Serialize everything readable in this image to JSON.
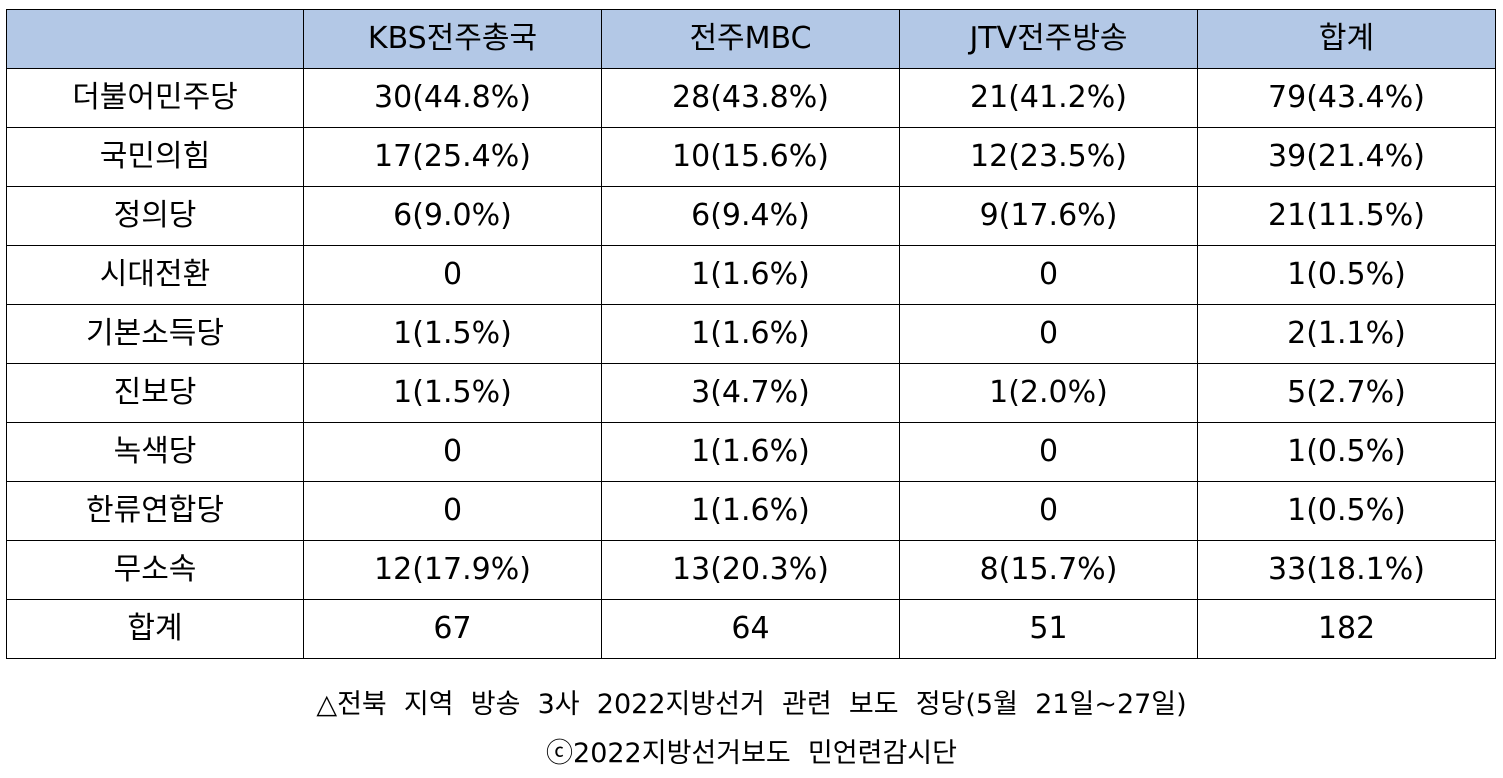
{
  "table": {
    "header": [
      "",
      "KBS전주총국",
      "전주MBC",
      "JTV전주방송",
      "합계"
    ],
    "header_color": "#b3c8e6",
    "rows": [
      [
        "더불어민주당",
        "30(44.8%)",
        "28(43.8%)",
        "21(41.2%)",
        "79(43.4%)"
      ],
      [
        "국민의힘",
        "17(25.4%)",
        "10(15.6%)",
        "12(23.5%)",
        "39(21.4%)"
      ],
      [
        "정의당",
        "6(9.0%)",
        "6(9.4%)",
        "9(17.6%)",
        "21(11.5%)"
      ],
      [
        "시대전환",
        "0",
        "1(1.6%)",
        "0",
        "1(0.5%)"
      ],
      [
        "기본소득당",
        "1(1.5%)",
        "1(1.6%)",
        "0",
        "2(1.1%)"
      ],
      [
        "진보당",
        "1(1.5%)",
        "3(4.7%)",
        "1(2.0%)",
        "5(2.7%)"
      ],
      [
        "녹색당",
        "0",
        "1(1.6%)",
        "0",
        "1(0.5%)"
      ],
      [
        "한류연합당",
        "0",
        "1(1.6%)",
        "0",
        "1(0.5%)"
      ],
      [
        "무소속",
        "12(17.9%)",
        "13(20.3%)",
        "8(15.7%)",
        "33(18.1%)"
      ],
      [
        "합계",
        "67",
        "64",
        "51",
        "182"
      ]
    ]
  },
  "caption": {
    "line1": "△전북  지역  방송  3사  2022지방선거  관련  보도  정당(5월  21일~27일)",
    "line2": "ⓒ2022지방선거보도  민언련감시단"
  }
}
